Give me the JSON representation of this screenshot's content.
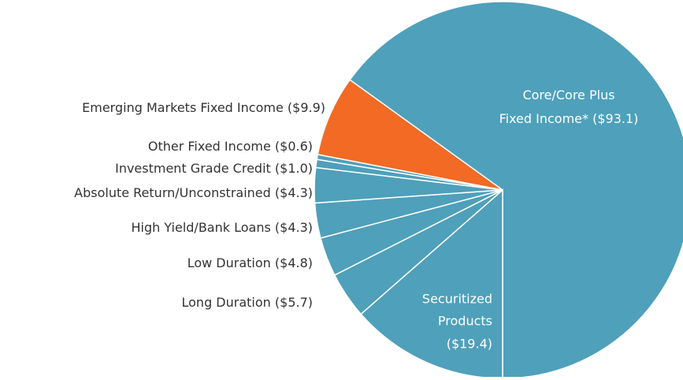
{
  "chart_data": {
    "type": "pie",
    "categories": [
      [
        "Core/Core Plus",
        "Fixed Income*"
      ],
      [
        "Securitized",
        "Products"
      ],
      "Long Duration",
      "Low Duration",
      "High Yield/Bank Loans",
      "Absolute Return/Unconstrained",
      "Investment Grade Credit",
      "Other Fixed Income",
      "Emerging Markets Fixed Income"
    ],
    "values": [
      93.1,
      19.4,
      5.7,
      4.8,
      4.3,
      4.3,
      1.0,
      0.6,
      9.9
    ],
    "value_labels": [
      "($93.1)",
      "($19.4)",
      "($5.7)",
      "($4.8)",
      "($4.3)",
      "($4.3)",
      "($1.0)",
      "($0.6)",
      "($9.9)"
    ],
    "colors": [
      "#4fa0bb",
      "#4fa0bb",
      "#4fa0bb",
      "#4fa0bb",
      "#4fa0bb",
      "#4fa0bb",
      "#4fa0bb",
      "#4fa0bb",
      "#f26a24"
    ]
  }
}
